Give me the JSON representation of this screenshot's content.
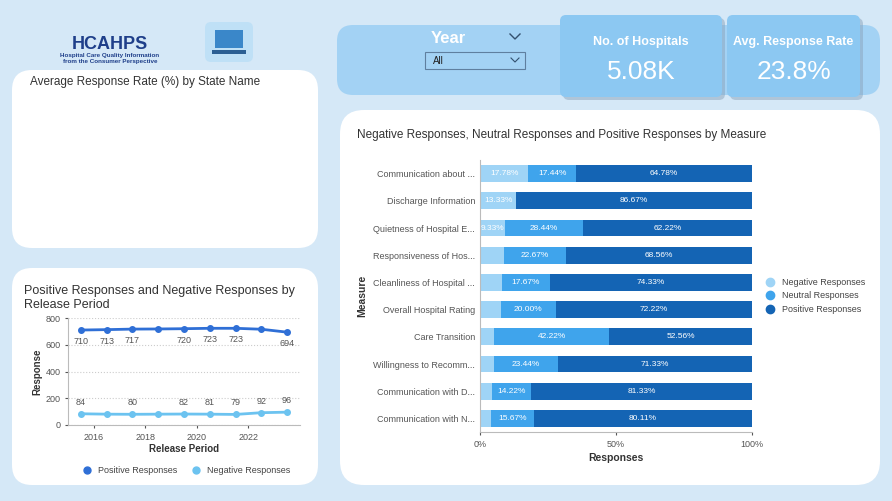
{
  "header": {
    "logo_title": "HCAHPS",
    "logo_subtitle": [
      "Hospital Care Quality Information",
      "from the Consumer Perspective"
    ]
  },
  "filter": {
    "label": "Year",
    "value": "All"
  },
  "cards": [
    {
      "label": "No. of Hospitals",
      "value": "5.08K"
    },
    {
      "label": "Avg. Response Rate",
      "value": "23.8%"
    }
  ],
  "map": {
    "title": "Average Response Rate (%) by State Name"
  },
  "chart_data": [
    {
      "type": "line",
      "title": "Positive Responses and Negative Responses by Release Period",
      "x_label": "Release Period",
      "y_label": "Response",
      "x": [
        2015.5,
        2016.5,
        2017.5,
        2018.5,
        2019.5,
        2020.5,
        2021.5,
        2022.5,
        2023.5
      ],
      "xlim": [
        2015,
        2024
      ],
      "xticks": [
        2016,
        2018,
        2020,
        2022
      ],
      "ylim": [
        0,
        800
      ],
      "yticks": [
        0,
        200,
        400,
        600,
        800
      ],
      "grid": true,
      "legend": "bottom",
      "data_labels": true,
      "marker": "circle",
      "series": [
        {
          "name": "Positive Responses",
          "color": "#2f6fd6",
          "values": [
            710,
            713,
            717,
            718,
            720,
            723,
            723,
            716,
            694
          ],
          "value_labels": [
            "710",
            "713",
            "717",
            null,
            "720",
            "723",
            "723",
            null,
            "694"
          ]
        },
        {
          "name": "Negative Responses",
          "color": "#6cc3f0",
          "values": [
            84,
            81,
            80,
            81,
            82,
            81,
            79,
            92,
            96
          ],
          "value_labels": [
            "84",
            null,
            "80",
            null,
            "82",
            "81",
            "79",
            "92",
            "96"
          ]
        }
      ]
    },
    {
      "type": "bar",
      "orientation": "horizontal",
      "stacked": true,
      "title": "Negative Responses, Neutral Responses and Positive Responses by Measure",
      "x_label": "Responses",
      "y_label": "Measure",
      "categories": [
        "Communication about ...",
        "Discharge Information",
        "Quietness of Hospital E...",
        "Responsiveness of Hos...",
        "Cleanliness of Hospital ...",
        "Overall Hospital Rating",
        "Care Transition",
        "Willingness to Recomm...",
        "Communication with D...",
        "Communication with N..."
      ],
      "xlim": [
        0,
        100
      ],
      "xticks": [
        {
          "value": 0,
          "label": "0%"
        },
        {
          "value": 50,
          "label": "50%"
        },
        {
          "value": 100,
          "label": "100%"
        }
      ],
      "grid": false,
      "legend": "right",
      "data_labels": true,
      "series": [
        {
          "name": "Negative Responses",
          "color": "#9fd4f6",
          "values": [
            17.78,
            13.33,
            9.33,
            8.77,
            8.0,
            7.78,
            5.22,
            5.23,
            4.45,
            4.22
          ],
          "value_labels": [
            "17.78%",
            "13.33%",
            "9.33%",
            null,
            null,
            null,
            null,
            null,
            null,
            null
          ]
        },
        {
          "name": "Neutral Responses",
          "color": "#3fa4ec",
          "values": [
            17.44,
            null,
            28.44,
            22.67,
            17.67,
            20.0,
            42.22,
            23.44,
            14.22,
            15.67
          ],
          "value_labels": [
            "17.44%",
            null,
            "28.44%",
            "22.67%",
            "17.67%",
            "20.00%",
            "42.22%",
            "23.44%",
            "14.22%",
            "15.67%"
          ]
        },
        {
          "name": "Positive Responses",
          "color": "#1464b4",
          "values": [
            64.78,
            86.67,
            62.22,
            68.56,
            74.33,
            72.22,
            52.56,
            71.33,
            81.33,
            80.11
          ],
          "value_labels": [
            "64.78%",
            "86.67%",
            "62.22%",
            "68.56%",
            "74.33%",
            "72.22%",
            "52.56%",
            "71.33%",
            "81.33%",
            "80.11%"
          ]
        }
      ]
    }
  ]
}
